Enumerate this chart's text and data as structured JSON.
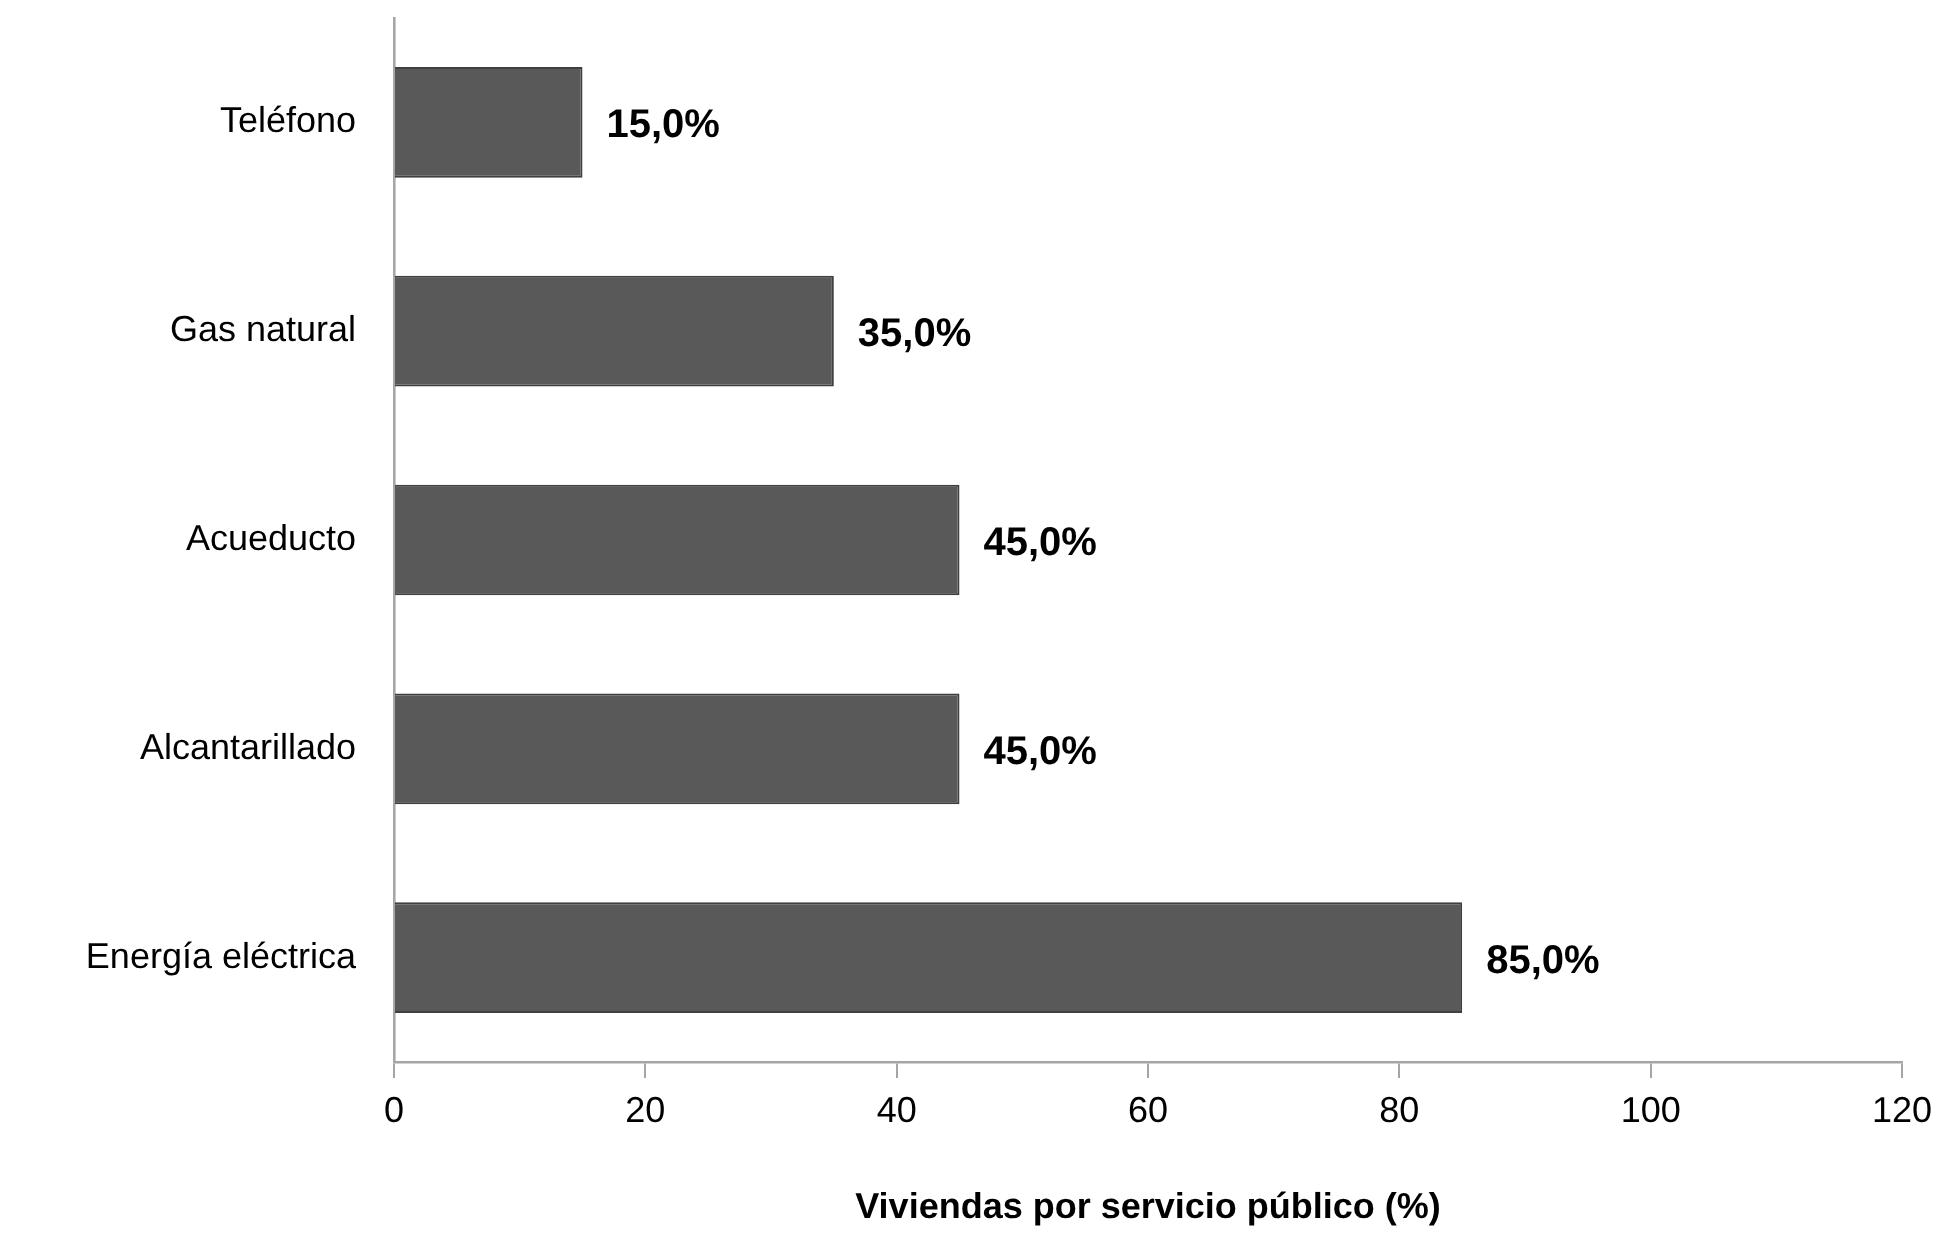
{
  "chart_data": {
    "type": "bar",
    "orientation": "horizontal",
    "categories": [
      "Teléfono",
      "Gas natural",
      "Acueducto",
      "Alcantarillado",
      "Energía eléctrica"
    ],
    "values": [
      15,
      35,
      45,
      45,
      85
    ],
    "value_labels": [
      "15,0%",
      "35,0%",
      "45,0%",
      "45,0%",
      "85,0%"
    ],
    "color": "#595959",
    "xlim": [
      0,
      120
    ],
    "xticks": [
      0,
      20,
      40,
      60,
      80,
      100,
      120
    ],
    "xlabel": "Viviendas por servicio público (%)"
  }
}
